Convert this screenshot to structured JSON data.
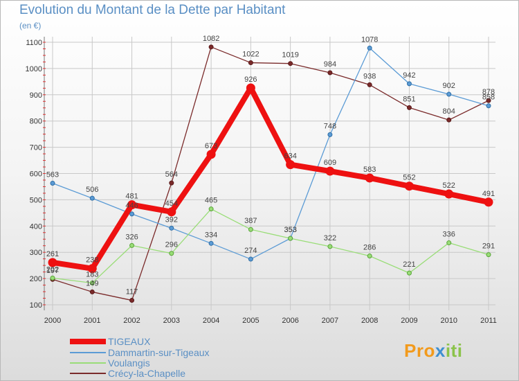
{
  "header": {
    "title": "Evolution du Montant de la Dette par Habitant",
    "unit": "(en €)"
  },
  "chart_data": {
    "type": "line",
    "title": "Evolution du Montant de la Dette par Habitant",
    "ylabel": "(en €)",
    "xlabel": "",
    "ylim": [
      100,
      1100
    ],
    "yticks": [
      "100",
      "200",
      "300",
      "400",
      "500",
      "600",
      "700",
      "800",
      "900",
      "1000",
      "1100"
    ],
    "categories": [
      "2000",
      "2001",
      "2002",
      "2003",
      "2004",
      "2005",
      "2006",
      "2007",
      "2008",
      "2009",
      "2010",
      "2011"
    ],
    "series": [
      {
        "name": "TIGEAUX",
        "color": "#ee1111",
        "width": 8,
        "values": [
          261,
          238,
          481,
          454,
          673,
          926,
          634,
          609,
          583,
          552,
          522,
          491
        ]
      },
      {
        "name": "Dammartin-sur-Tigeaux",
        "color": "#5b9bd5",
        "width": 1.3,
        "values": [
          563,
          506,
          446,
          392,
          334,
          274,
          353,
          748,
          1078,
          942,
          902,
          858
        ]
      },
      {
        "name": "Voulangis",
        "color": "#99dd77",
        "width": 1.3,
        "values": [
          202,
          183,
          326,
          296,
          465,
          387,
          353,
          322,
          286,
          221,
          336,
          291
        ]
      },
      {
        "name": "Crécy-la-Chapelle",
        "color": "#7a2a2a",
        "width": 1.3,
        "values": [
          197,
          149,
          117,
          564,
          1082,
          1022,
          1019,
          984,
          938,
          851,
          804,
          878
        ]
      }
    ],
    "data_labels": [
      [
        "261",
        "238",
        "481",
        "454",
        "673",
        "926",
        "634",
        "609",
        "583",
        "552",
        "522",
        "491"
      ],
      [
        "563",
        "506",
        "446",
        "392",
        "334",
        "274",
        "353",
        "748",
        "1078",
        "942",
        "902",
        "858"
      ],
      [
        "202",
        "183",
        "326",
        "296",
        "465",
        "387",
        "353",
        "322",
        "286",
        "221",
        "336",
        "291"
      ],
      [
        "197",
        "149",
        "117",
        "564",
        "1082",
        "1022",
        "1019",
        "984",
        "938",
        "851",
        "804",
        "878"
      ]
    ],
    "legend_position": "bottom-left"
  },
  "legend": [
    {
      "label": "TIGEAUX",
      "color": "#ee1111"
    },
    {
      "label": "Dammartin-sur-Tigeaux",
      "color": "#5b9bd5"
    },
    {
      "label": "Voulangis",
      "color": "#99dd77"
    },
    {
      "label": "Crécy-la-Chapelle",
      "color": "#7a2a2a"
    }
  ],
  "logo": {
    "part1": "Pro",
    "part2": "x",
    "part3": "iti"
  }
}
